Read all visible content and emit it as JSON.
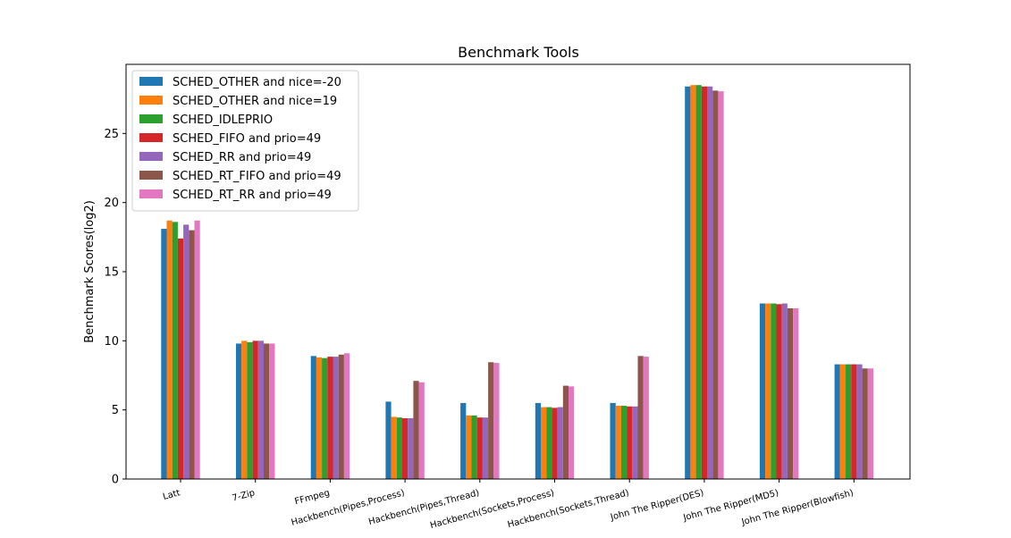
{
  "chart_data": {
    "type": "bar",
    "title": "Benchmark Tools",
    "xlabel": "",
    "ylabel": "Benchmark Scores(log2)",
    "ylim": [
      0,
      30
    ],
    "yticks": [
      0,
      5,
      10,
      15,
      20,
      25
    ],
    "grid": false,
    "legend_position": "top-left",
    "categories": [
      "Latt",
      "7-Zip",
      "FFmpeg",
      "Hackbench(Pipes,Process)",
      "Hackbench(Pipes,Thread)",
      "Hackbench(Sockets,Process)",
      "Hackbench(Sockets,Thread)",
      "John The Ripper(DES)",
      "John The Ripper(MD5)",
      "John The Ripper(Blowfish)"
    ],
    "series": [
      {
        "name": "SCHED_OTHER and nice=-20",
        "color": "#1f77b4",
        "values": [
          18.1,
          9.8,
          8.9,
          5.6,
          5.5,
          5.5,
          5.5,
          28.4,
          12.7,
          8.3
        ]
      },
      {
        "name": "SCHED_OTHER and nice=19",
        "color": "#ff7f0e",
        "values": [
          18.7,
          10.0,
          8.8,
          4.5,
          4.6,
          5.2,
          5.3,
          28.5,
          12.7,
          8.3
        ]
      },
      {
        "name": "SCHED_IDLEPRIO",
        "color": "#2ca02c",
        "values": [
          18.6,
          9.9,
          8.75,
          4.45,
          4.6,
          5.2,
          5.3,
          28.5,
          12.7,
          8.3
        ]
      },
      {
        "name": "SCHED_FIFO and prio=49",
        "color": "#d62728",
        "values": [
          17.4,
          10.0,
          8.85,
          4.4,
          4.45,
          5.15,
          5.25,
          28.4,
          12.65,
          8.3
        ]
      },
      {
        "name": "SCHED_RR and prio=49",
        "color": "#9467bd",
        "values": [
          18.4,
          10.0,
          8.85,
          4.4,
          4.45,
          5.2,
          5.25,
          28.4,
          12.7,
          8.3
        ]
      },
      {
        "name": "SCHED_RT_FIFO and prio=49",
        "color": "#8c564b",
        "values": [
          18.0,
          9.8,
          9.0,
          7.1,
          8.45,
          6.75,
          8.9,
          28.1,
          12.35,
          8.0
        ]
      },
      {
        "name": "SCHED_RT_RR and prio=49",
        "color": "#e377c2",
        "values": [
          18.7,
          9.8,
          9.1,
          7.0,
          8.4,
          6.7,
          8.85,
          28.05,
          12.35,
          8.0
        ]
      }
    ]
  }
}
